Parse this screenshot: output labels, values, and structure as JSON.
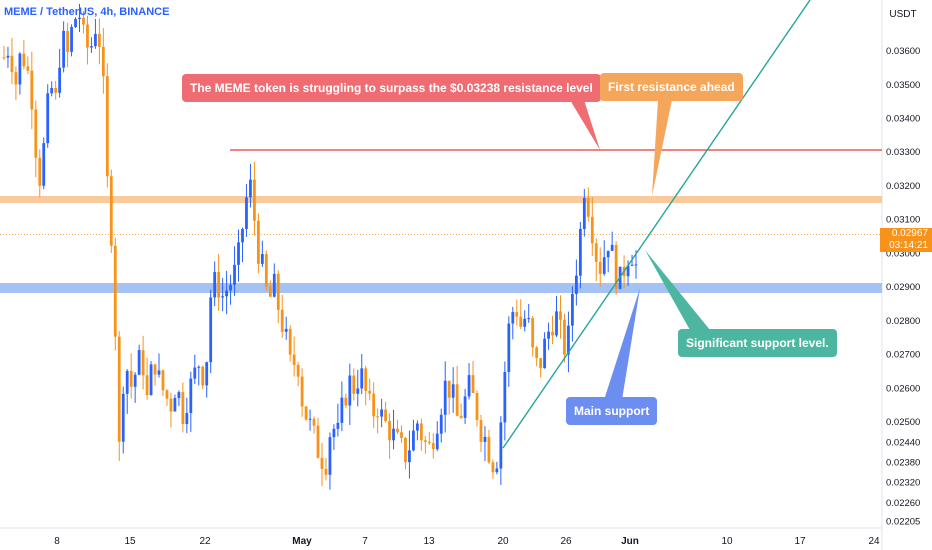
{
  "header": {
    "symbol_label": "MEME / TetherUS, 4h, BINANCE"
  },
  "price_scale": {
    "currency": "USDT",
    "ticks": [
      "0.03600",
      "0.03500",
      "0.03400",
      "0.03300",
      "0.03200",
      "0.03100",
      "0.03000",
      "0.02900",
      "0.02800",
      "0.02700",
      "0.02600",
      "0.02500",
      "0.02440",
      "0.02380",
      "0.02320",
      "0.02260",
      "0.02205"
    ]
  },
  "current_price": {
    "value": "0.02967",
    "countdown": "03:14:21"
  },
  "time_axis": {
    "labels": [
      "8",
      "15",
      "22",
      "May",
      "7",
      "13",
      "20",
      "26",
      "Jun",
      "10",
      "17",
      "24"
    ]
  },
  "annotations": {
    "resistance_note": "The MEME token is struggling to surpass the $0.03238 resistance level",
    "first_resistance": "First resistance ahead",
    "support_level": "Significant support level.",
    "main_support": "Main support"
  },
  "colors": {
    "up": "#2962ff",
    "down": "#f7931a",
    "resistance_line": "#e53935",
    "orange_band": "#f9cb9c",
    "blue_band": "#a4c2f4",
    "trendline": "#26a69a",
    "callout_red": "#ef6c73",
    "callout_orange": "#f4a65a",
    "callout_teal": "#4db6a0",
    "callout_blue": "#6b8ef0"
  },
  "chart_data": {
    "type": "candlestick",
    "title": "MEME / TetherUS, 4h, BINANCE",
    "y_range": [
      0.02205,
      0.0375
    ],
    "levels": [
      {
        "name": "resistance",
        "price": 0.03238
      },
      {
        "name": "first resistance zone",
        "price": 0.03082
      },
      {
        "name": "support zone",
        "price": 0.02808
      }
    ],
    "current_price": 0.02967,
    "x_labels": [
      "8",
      "15",
      "22",
      "May",
      "7",
      "13",
      "20",
      "26",
      "Jun",
      "10",
      "17",
      "24"
    ],
    "close_path": [
      0.0358,
      0.0362,
      0.035,
      0.036,
      0.0355,
      0.0345,
      0.032,
      0.0332,
      0.035,
      0.0345,
      0.0365,
      0.0358,
      0.0368,
      0.0372,
      0.0362,
      0.036,
      0.0368,
      0.036,
      0.032,
      0.03,
      0.024,
      0.027,
      0.026,
      0.0265,
      0.027,
      0.0255,
      0.027,
      0.0262,
      0.0258,
      0.0255,
      0.0262,
      0.0252,
      0.0258,
      0.0263,
      0.0268,
      0.0262,
      0.0288,
      0.0292,
      0.0287,
      0.029,
      0.0293,
      0.03,
      0.0315,
      0.032,
      0.0303,
      0.0295,
      0.0285,
      0.029,
      0.0282,
      0.0275,
      0.0265,
      0.027,
      0.0255,
      0.025,
      0.0245,
      0.024,
      0.0238,
      0.025,
      0.0245,
      0.0255,
      0.0262,
      0.026,
      0.0265,
      0.0258,
      0.0252,
      0.0255,
      0.025,
      0.0248,
      0.0245,
      0.0242,
      0.024,
      0.0245,
      0.025,
      0.0244,
      0.0242,
      0.0248,
      0.0255,
      0.0262,
      0.0258,
      0.025,
      0.0255,
      0.026,
      0.0255,
      0.0248,
      0.0244,
      0.0238,
      0.024,
      0.0262,
      0.028,
      0.0285,
      0.0278,
      0.0282,
      0.027,
      0.0265,
      0.0272,
      0.0278,
      0.0282,
      0.0275,
      0.027,
      0.029,
      0.03,
      0.032,
      0.0312,
      0.03,
      0.0295,
      0.0305,
      0.0298,
      0.029,
      0.0296,
      0.0302,
      0.0296
    ]
  }
}
